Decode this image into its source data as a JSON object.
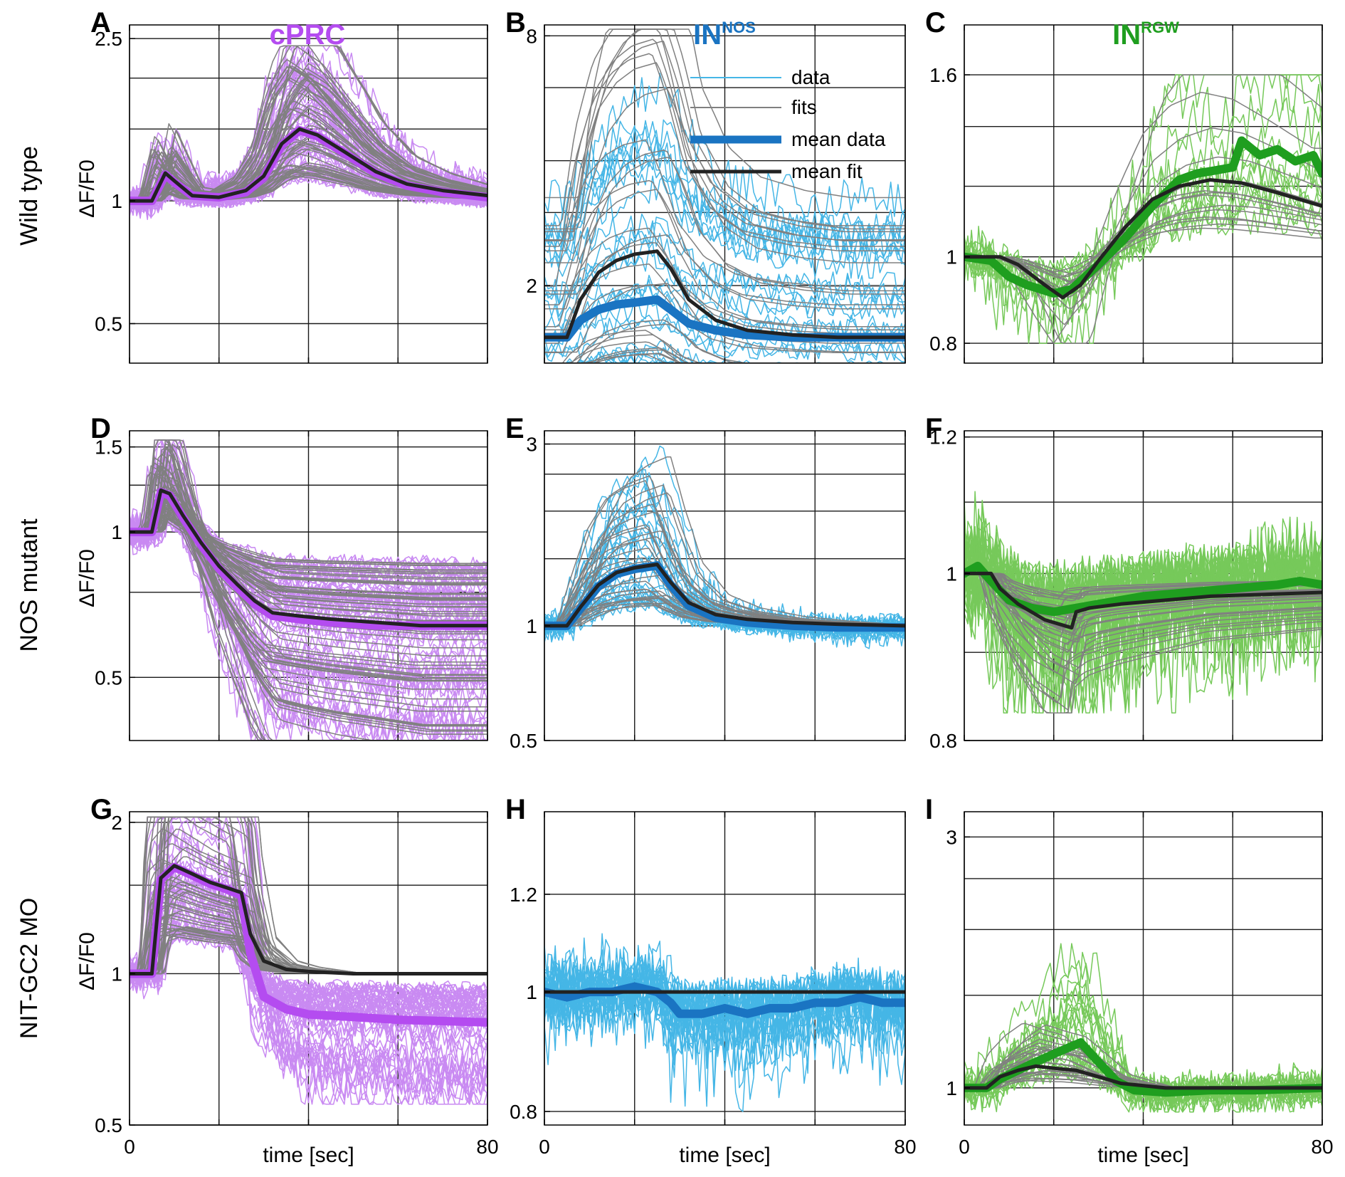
{
  "colors": {
    "cprc": "#b44cf0",
    "cprc_light": "#c98af2",
    "innos": "#1a74c2",
    "innos_light": "#45b6e6",
    "inrgw": "#1f9e1f",
    "inrgw_light": "#76c95a",
    "fit": "#808080",
    "mean_fit": "#222222"
  },
  "columns": [
    {
      "title": "cPRC",
      "sup": "",
      "color": "#b44cf0"
    },
    {
      "title": "IN",
      "sup": "NOS",
      "color": "#1a74c2"
    },
    {
      "title": "IN",
      "sup": "RGW",
      "color": "#1f9e1f"
    }
  ],
  "rows": [
    {
      "label": "Wild type"
    },
    {
      "label": "NOS mutant"
    },
    {
      "label": "NIT-GC2 MO"
    }
  ],
  "common": {
    "ylabel": "ΔF/F0",
    "xlabel": "time [sec]",
    "x_tick_labels": [
      "0",
      "80"
    ]
  },
  "legend": {
    "placement": "top-right of panel B",
    "entries": [
      {
        "label": "data",
        "style": "thin-data"
      },
      {
        "label": "fits",
        "style": "thin-fit"
      },
      {
        "label": "mean data",
        "style": "thick-data"
      },
      {
        "label": "mean fit",
        "style": "thick-fit"
      }
    ]
  },
  "chart_data": [
    {
      "panel": "A",
      "type": "line",
      "row": 0,
      "col": 0,
      "xlim": [
        0,
        80
      ],
      "ylim": [
        0.4,
        2.7
      ],
      "yscale": "log",
      "yticks": [
        {
          "v": 0.5,
          "label": "0.5"
        },
        {
          "v": 1,
          "label": "1"
        },
        {
          "v": 2.5,
          "label": "2.5"
        }
      ],
      "ygrid": [
        0.5,
        1,
        1.5,
        2,
        2.5
      ],
      "grid": true,
      "n_traces": 60,
      "amp": [
        0.5,
        2.4
      ],
      "mean_fit": {
        "x": [
          0,
          5,
          8,
          10,
          14,
          20,
          26,
          30,
          34,
          38,
          42,
          48,
          55,
          62,
          70,
          80
        ],
        "y": [
          1.0,
          1.0,
          1.17,
          1.12,
          1.03,
          1.02,
          1.06,
          1.15,
          1.38,
          1.5,
          1.45,
          1.32,
          1.18,
          1.1,
          1.06,
          1.03
        ]
      },
      "mean_data": {
        "x": [
          0,
          5,
          8,
          10,
          14,
          20,
          26,
          30,
          34,
          38,
          42,
          48,
          55,
          62,
          70,
          80
        ],
        "y": [
          1.0,
          1.0,
          1.16,
          1.11,
          1.03,
          1.02,
          1.05,
          1.14,
          1.37,
          1.49,
          1.44,
          1.31,
          1.17,
          1.09,
          1.05,
          1.02
        ]
      }
    },
    {
      "panel": "B",
      "type": "line",
      "row": 0,
      "col": 1,
      "xlim": [
        0,
        80
      ],
      "ylim": [
        1.3,
        8.5
      ],
      "yscale": "log",
      "yticks": [
        {
          "v": 2,
          "label": "2"
        },
        {
          "v": 8,
          "label": "8"
        }
      ],
      "ygrid": [
        2,
        3,
        4,
        6,
        8
      ],
      "grid": true,
      "n_traces": 30,
      "amp": [
        1,
        8.3
      ],
      "mean_fit": {
        "x": [
          0,
          5,
          8,
          12,
          16,
          20,
          25,
          28,
          32,
          38,
          45,
          55,
          65,
          80
        ],
        "y": [
          1.5,
          1.5,
          1.85,
          2.15,
          2.3,
          2.38,
          2.42,
          2.2,
          1.85,
          1.65,
          1.56,
          1.52,
          1.5,
          1.5
        ]
      },
      "mean_data": {
        "x": [
          0,
          5,
          8,
          12,
          16,
          20,
          25,
          28,
          32,
          38,
          45,
          55,
          65,
          80
        ],
        "y": [
          1.5,
          1.5,
          1.65,
          1.75,
          1.8,
          1.82,
          1.85,
          1.75,
          1.62,
          1.56,
          1.52,
          1.5,
          1.5,
          1.5
        ]
      }
    },
    {
      "panel": "C",
      "type": "line",
      "row": 0,
      "col": 2,
      "xlim": [
        0,
        80
      ],
      "ylim": [
        0.76,
        1.82
      ],
      "yscale": "log",
      "yticks": [
        {
          "v": 0.8,
          "label": "0.8"
        },
        {
          "v": 1,
          "label": "1"
        },
        {
          "v": 1.6,
          "label": "1.6"
        }
      ],
      "ygrid": [
        0.8,
        1,
        1.2,
        1.4,
        1.6
      ],
      "grid": true,
      "n_traces": 14,
      "amp": [
        0.8,
        1.6
      ],
      "mean_fit": {
        "x": [
          0,
          8,
          12,
          18,
          22,
          26,
          30,
          36,
          42,
          48,
          55,
          62,
          70,
          80
        ],
        "y": [
          1.0,
          1.0,
          0.98,
          0.93,
          0.9,
          0.93,
          0.99,
          1.08,
          1.16,
          1.2,
          1.22,
          1.21,
          1.18,
          1.14
        ]
      },
      "mean_data": {
        "x": [
          0,
          6,
          10,
          14,
          20,
          24,
          30,
          36,
          42,
          48,
          52,
          56,
          60,
          62,
          66,
          70,
          74,
          78,
          80
        ],
        "y": [
          1.0,
          0.99,
          0.95,
          0.93,
          0.91,
          0.92,
          0.98,
          1.05,
          1.14,
          1.22,
          1.24,
          1.25,
          1.26,
          1.35,
          1.3,
          1.32,
          1.28,
          1.3,
          1.24
        ]
      }
    },
    {
      "panel": "D",
      "type": "line",
      "row": 1,
      "col": 0,
      "xlim": [
        0,
        80
      ],
      "ylim": [
        0.37,
        1.62
      ],
      "yscale": "log",
      "yticks": [
        {
          "v": 0.5,
          "label": "0.5"
        },
        {
          "v": 1,
          "label": "1"
        },
        {
          "v": 1.5,
          "label": "1.5"
        }
      ],
      "ygrid": [
        0.5,
        0.75,
        1,
        1.25,
        1.5
      ],
      "grid": true,
      "n_traces": 70,
      "amp": [
        0.37,
        1.55
      ],
      "mean_fit": {
        "x": [
          0,
          5,
          7,
          9,
          12,
          16,
          20,
          24,
          28,
          32,
          38,
          45,
          55,
          65,
          80
        ],
        "y": [
          1.0,
          1.0,
          1.22,
          1.2,
          1.08,
          0.95,
          0.85,
          0.78,
          0.72,
          0.68,
          0.67,
          0.66,
          0.65,
          0.64,
          0.64
        ]
      },
      "mean_data": {
        "x": [
          0,
          5,
          7,
          9,
          12,
          16,
          20,
          24,
          28,
          32,
          38,
          45,
          55,
          65,
          80
        ],
        "y": [
          1.0,
          1.0,
          1.21,
          1.19,
          1.07,
          0.94,
          0.84,
          0.77,
          0.71,
          0.67,
          0.66,
          0.65,
          0.64,
          0.64,
          0.64
        ]
      }
    },
    {
      "panel": "E",
      "type": "line",
      "row": 1,
      "col": 1,
      "xlim": [
        0,
        80
      ],
      "ylim": [
        0.5,
        3.25
      ],
      "yscale": "log",
      "yticks": [
        {
          "v": 0.5,
          "label": "0.5"
        },
        {
          "v": 1,
          "label": "1"
        },
        {
          "v": 3,
          "label": "3"
        }
      ],
      "ygrid": [
        1,
        1.5,
        2,
        2.5,
        3
      ],
      "grid": true,
      "n_traces": 28,
      "amp": [
        0.55,
        3.1
      ],
      "mean_fit": {
        "x": [
          0,
          5,
          8,
          12,
          16,
          20,
          25,
          28,
          32,
          38,
          45,
          55,
          65,
          80
        ],
        "y": [
          1.0,
          1.0,
          1.12,
          1.28,
          1.38,
          1.42,
          1.45,
          1.3,
          1.15,
          1.07,
          1.04,
          1.02,
          1.01,
          1.0
        ]
      },
      "mean_data": {
        "x": [
          0,
          5,
          8,
          12,
          16,
          20,
          25,
          28,
          32,
          38,
          45,
          55,
          65,
          80
        ],
        "y": [
          1.0,
          1.0,
          1.11,
          1.27,
          1.37,
          1.41,
          1.44,
          1.28,
          1.13,
          1.05,
          1.02,
          1.0,
          0.99,
          0.99
        ]
      }
    },
    {
      "panel": "F",
      "type": "line",
      "row": 1,
      "col": 2,
      "xlim": [
        0,
        80
      ],
      "ylim": [
        0.8,
        1.21
      ],
      "yscale": "log",
      "yticks": [
        {
          "v": 0.8,
          "label": "0.8"
        },
        {
          "v": 1,
          "label": "1"
        },
        {
          "v": 1.2,
          "label": "1.2"
        }
      ],
      "ygrid": [
        0.8,
        0.9,
        1,
        1.1,
        1.2
      ],
      "grid": true,
      "n_traces": 35,
      "amp": [
        0.83,
        1.2
      ],
      "mean_fit": {
        "x": [
          0,
          6,
          8,
          12,
          18,
          24,
          25,
          28,
          35,
          45,
          55,
          65,
          80
        ],
        "y": [
          1.0,
          1.0,
          0.98,
          0.96,
          0.94,
          0.93,
          0.95,
          0.955,
          0.96,
          0.965,
          0.97,
          0.972,
          0.975
        ]
      },
      "mean_data": {
        "x": [
          0,
          3,
          6,
          10,
          15,
          20,
          25,
          30,
          40,
          50,
          60,
          70,
          75,
          80
        ],
        "y": [
          1.0,
          1.01,
          0.99,
          0.965,
          0.955,
          0.95,
          0.955,
          0.96,
          0.97,
          0.975,
          0.98,
          0.985,
          0.99,
          0.985
        ]
      }
    },
    {
      "panel": "G",
      "type": "line",
      "row": 2,
      "col": 0,
      "xlim": [
        0,
        80
      ],
      "ylim": [
        0.5,
        2.1
      ],
      "yscale": "log",
      "yticks": [
        {
          "v": 0.5,
          "label": "0.5"
        },
        {
          "v": 1,
          "label": "1"
        },
        {
          "v": 2,
          "label": "2"
        }
      ],
      "ygrid": [
        0.5,
        1,
        1.5,
        2
      ],
      "grid": true,
      "n_traces": 55,
      "amp": [
        0.55,
        2.05
      ],
      "mean_fit": {
        "x": [
          0,
          5,
          7,
          10,
          14,
          18,
          22,
          25,
          27,
          30,
          35,
          40,
          50,
          60,
          80
        ],
        "y": [
          1.0,
          1.0,
          1.55,
          1.64,
          1.58,
          1.52,
          1.48,
          1.45,
          1.2,
          1.06,
          1.02,
          1.01,
          1.0,
          1.0,
          1.0
        ]
      },
      "mean_data": {
        "x": [
          0,
          5,
          7,
          10,
          14,
          18,
          22,
          25,
          27,
          30,
          35,
          40,
          50,
          60,
          80
        ],
        "y": [
          1.0,
          1.0,
          1.54,
          1.63,
          1.57,
          1.51,
          1.47,
          1.43,
          1.1,
          0.9,
          0.85,
          0.83,
          0.82,
          0.81,
          0.8
        ]
      }
    },
    {
      "panel": "H",
      "type": "line",
      "row": 2,
      "col": 1,
      "xlim": [
        0,
        80
      ],
      "ylim": [
        0.78,
        1.4
      ],
      "yscale": "log",
      "yticks": [
        {
          "v": 0.8,
          "label": "0.8"
        },
        {
          "v": 1,
          "label": "1"
        },
        {
          "v": 1.2,
          "label": "1.2"
        }
      ],
      "ygrid": [
        0.8,
        1,
        1.2
      ],
      "grid": true,
      "n_traces": 26,
      "amp": [
        0.8,
        1.35
      ],
      "mean_fit": {
        "x": [
          0,
          80
        ],
        "y": [
          1.0,
          1.0
        ]
      },
      "mean_data": {
        "x": [
          0,
          5,
          10,
          15,
          20,
          25,
          28,
          30,
          35,
          40,
          45,
          50,
          55,
          60,
          65,
          70,
          75,
          80
        ],
        "y": [
          1.0,
          0.99,
          1.0,
          1.0,
          1.01,
          1.0,
          0.98,
          0.96,
          0.96,
          0.97,
          0.96,
          0.97,
          0.97,
          0.98,
          0.98,
          0.99,
          0.98,
          0.98
        ]
      }
    },
    {
      "panel": "I",
      "type": "line",
      "row": 2,
      "col": 2,
      "xlim": [
        0,
        80
      ],
      "ylim": [
        0.85,
        3.35
      ],
      "yscale": "log",
      "yticks": [
        {
          "v": 1,
          "label": "1"
        },
        {
          "v": 3,
          "label": "3"
        }
      ],
      "ygrid": [
        1,
        1.5,
        2,
        2.5,
        3
      ],
      "grid": true,
      "n_traces": 24,
      "amp": [
        0.9,
        3.3
      ],
      "mean_fit": {
        "x": [
          0,
          5,
          8,
          12,
          16,
          20,
          25,
          30,
          35,
          45,
          55,
          80
        ],
        "y": [
          1.0,
          1.0,
          1.05,
          1.08,
          1.1,
          1.09,
          1.08,
          1.05,
          1.02,
          1.0,
          1.0,
          1.0
        ]
      },
      "mean_data": {
        "x": [
          0,
          5,
          8,
          12,
          16,
          20,
          24,
          26,
          30,
          34,
          38,
          45,
          55,
          65,
          80
        ],
        "y": [
          1.0,
          1.0,
          1.04,
          1.08,
          1.12,
          1.16,
          1.2,
          1.22,
          1.12,
          1.03,
          0.99,
          0.98,
          0.99,
          0.99,
          1.0
        ]
      }
    }
  ]
}
